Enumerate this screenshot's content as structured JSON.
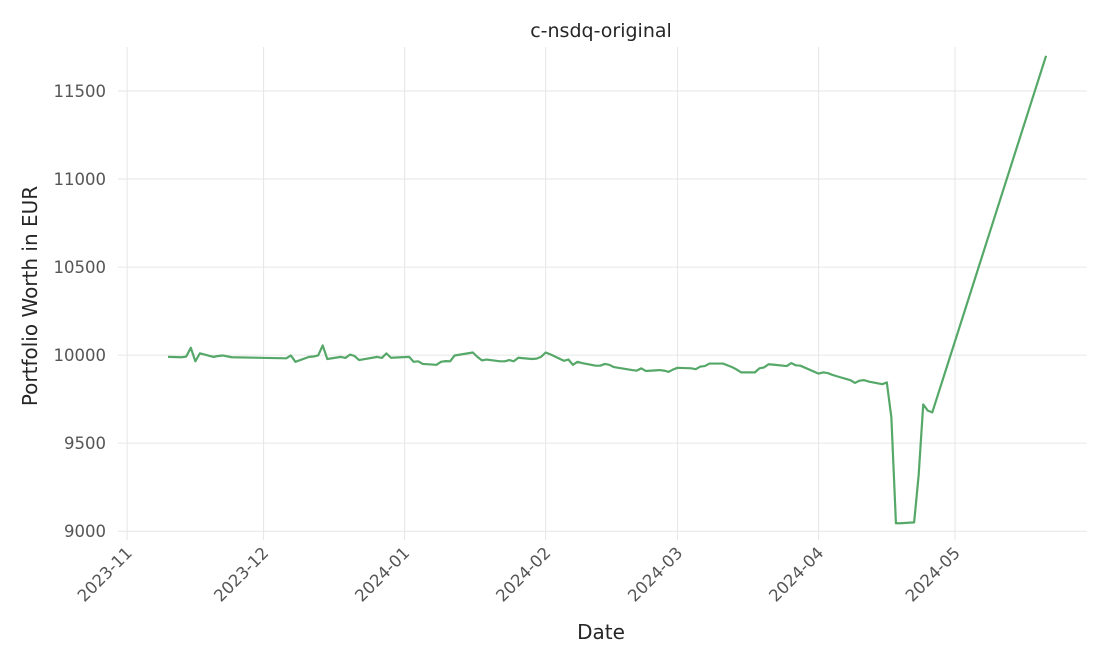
{
  "chart_data": {
    "type": "line",
    "title": "c-nsdq-original",
    "xlabel": "Date",
    "ylabel": "Portfolio Worth in EUR",
    "xlim": [
      "2023-10-30",
      "2024-05-30"
    ],
    "ylim": [
      8950,
      11750
    ],
    "grid": true,
    "colors": {
      "series": "#55a868",
      "grid": "#e6e6e6"
    },
    "x_ticks": [
      "2023-11",
      "2023-12",
      "2024-01",
      "2024-02",
      "2024-03",
      "2024-04",
      "2024-05"
    ],
    "y_ticks": [
      9000,
      9500,
      10000,
      10500,
      11000,
      11500
    ],
    "series": [
      {
        "x": [
          "2023-11-10",
          "2023-11-13",
          "2023-11-14",
          "2023-11-15",
          "2023-11-16",
          "2023-11-17",
          "2023-11-20",
          "2023-11-21",
          "2023-11-22",
          "2023-11-24",
          "2023-12-06",
          "2023-12-07",
          "2023-12-08",
          "2023-12-11",
          "2023-12-12",
          "2023-12-13",
          "2023-12-14",
          "2023-12-15",
          "2023-12-18",
          "2023-12-19",
          "2023-12-20",
          "2023-12-21",
          "2023-12-22",
          "2023-12-26",
          "2023-12-27",
          "2023-12-28",
          "2023-12-29",
          "2024-01-02",
          "2024-01-03",
          "2024-01-04",
          "2024-01-05",
          "2024-01-08",
          "2024-01-09",
          "2024-01-10",
          "2024-01-11",
          "2024-01-12",
          "2024-01-16",
          "2024-01-17",
          "2024-01-18",
          "2024-01-19",
          "2024-01-22",
          "2024-01-23",
          "2024-01-24",
          "2024-01-25",
          "2024-01-26",
          "2024-01-29",
          "2024-01-30",
          "2024-01-31",
          "2024-02-01",
          "2024-02-02",
          "2024-02-05",
          "2024-02-06",
          "2024-02-07",
          "2024-02-08",
          "2024-02-09",
          "2024-02-12",
          "2024-02-13",
          "2024-02-14",
          "2024-02-15",
          "2024-02-16",
          "2024-02-20",
          "2024-02-21",
          "2024-02-22",
          "2024-02-23",
          "2024-02-26",
          "2024-02-27",
          "2024-02-28",
          "2024-02-29",
          "2024-03-01",
          "2024-03-04",
          "2024-03-05",
          "2024-03-06",
          "2024-03-07",
          "2024-03-08",
          "2024-03-11",
          "2024-03-12",
          "2024-03-13",
          "2024-03-14",
          "2024-03-15",
          "2024-03-18",
          "2024-03-19",
          "2024-03-20",
          "2024-03-21",
          "2024-03-22",
          "2024-03-25",
          "2024-03-26",
          "2024-03-27",
          "2024-03-28",
          "2024-04-01",
          "2024-04-02",
          "2024-04-03",
          "2024-04-04",
          "2024-04-05",
          "2024-04-08",
          "2024-04-09",
          "2024-04-10",
          "2024-04-11",
          "2024-04-12",
          "2024-04-15",
          "2024-04-16",
          "2024-04-17",
          "2024-04-18",
          "2024-04-19",
          "2024-04-22",
          "2024-04-23",
          "2024-04-24",
          "2024-04-25",
          "2024-04-26",
          "2024-05-21"
        ],
        "values": [
          9990,
          9988,
          9992,
          10042,
          9965,
          10010,
          9990,
          9995,
          9998,
          9988,
          9982,
          9998,
          9962,
          9990,
          9992,
          9998,
          10055,
          9978,
          9990,
          9984,
          10003,
          9995,
          9972,
          9990,
          9984,
          10010,
          9985,
          9990,
          9962,
          9965,
          9950,
          9945,
          9962,
          9966,
          9965,
          9998,
          10015,
          9990,
          9970,
          9975,
          9965,
          9965,
          9972,
          9965,
          9985,
          9978,
          9980,
          9990,
          10015,
          10005,
          9968,
          9975,
          9945,
          9962,
          9955,
          9940,
          9940,
          9950,
          9945,
          9932,
          9915,
          9912,
          9925,
          9910,
          9915,
          9912,
          9905,
          9918,
          9928,
          9925,
          9920,
          9935,
          9938,
          9952,
          9952,
          9942,
          9932,
          9918,
          9902,
          9902,
          9925,
          9930,
          9948,
          9946,
          9938,
          9955,
          9942,
          9940,
          9895,
          9902,
          9898,
          9888,
          9880,
          9858,
          9842,
          9855,
          9858,
          9850,
          9835,
          9845,
          9645,
          9045,
          9045,
          9050,
          9320,
          9720,
          9685,
          9675,
          11700
        ]
      }
    ]
  }
}
